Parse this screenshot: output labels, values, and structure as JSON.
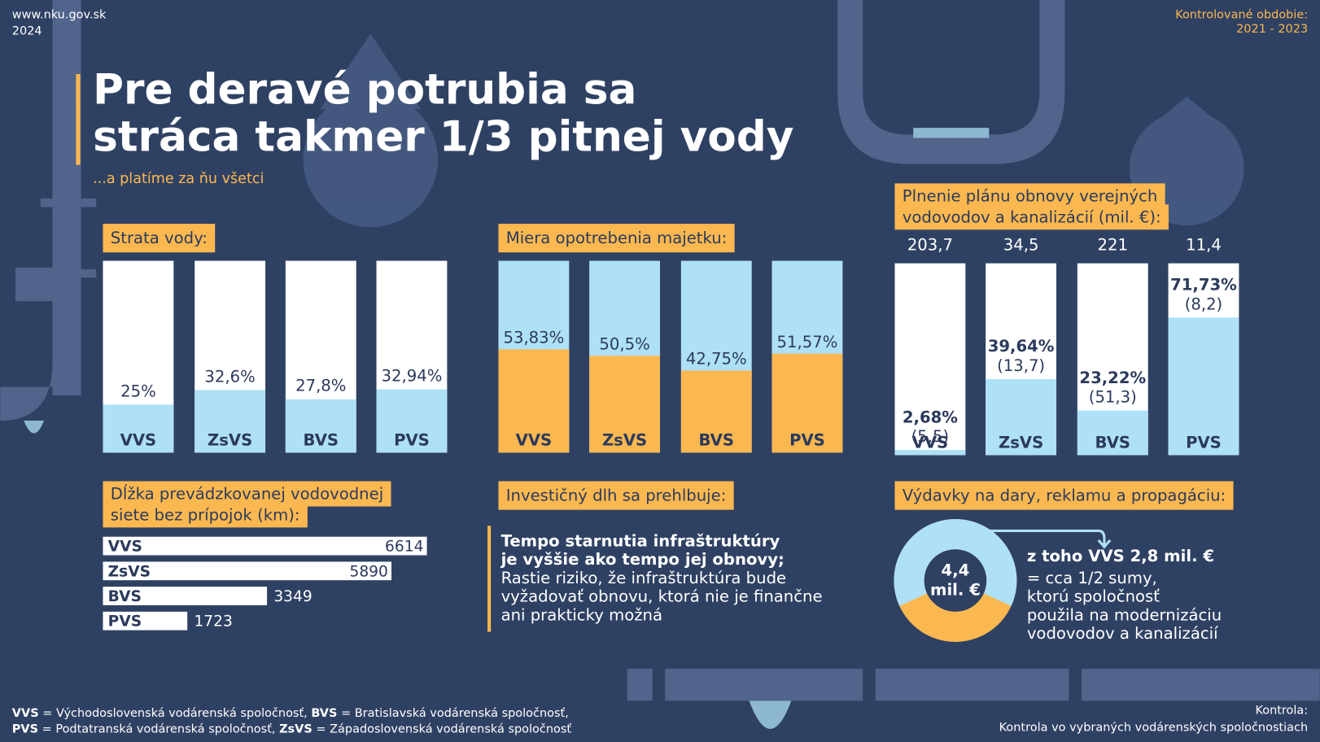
{
  "header": {
    "site": "www.nku.gov.sk",
    "year": "2024",
    "period_label": "Kontrolované obdobie:",
    "period": "2021 - 2023",
    "title_lines": [
      "Pre deravé potrubia sa",
      "stráca takmer 1/3 pitnej vody"
    ],
    "subtitle": "...a platíme za ňu všetci"
  },
  "water_loss": {
    "title": "Strata vody:",
    "categories": [
      "VVS",
      "ZsVS",
      "BVS",
      "PVS"
    ],
    "values": [
      25,
      32.6,
      27.8,
      32.94
    ],
    "value_labels": [
      "25%",
      "32,6%",
      "27,8%",
      "32,94%"
    ],
    "ylim": [
      0,
      100
    ]
  },
  "asset_wear": {
    "title": "Miera opotrebenia majetku:",
    "categories": [
      "VVS",
      "ZsVS",
      "BVS",
      "PVS"
    ],
    "values": [
      53.83,
      50.5,
      42.75,
      51.57
    ],
    "value_labels": [
      "53,83%",
      "50,5%",
      "42,75%",
      "51,57%"
    ],
    "ylim": [
      0,
      100
    ]
  },
  "plan_fulfillment": {
    "title_lines": [
      "Plnenie plánu obnovy verejných",
      "vodovodov a kanalizácií (mil. €):"
    ],
    "categories": [
      "VVS",
      "ZsVS",
      "BVS",
      "PVS"
    ],
    "totals": [
      203.7,
      34.5,
      221,
      11.4
    ],
    "total_labels": [
      "203,7",
      "34,5",
      "221",
      "11,4"
    ],
    "values": [
      2.68,
      39.64,
      23.22,
      71.73
    ],
    "value_labels": [
      "2,68%",
      "39,64%",
      "23,22%",
      "71,73%"
    ],
    "amounts": [
      5.5,
      13.7,
      51.3,
      8.2
    ],
    "amount_labels": [
      "(5,5)",
      "(13,7)",
      "(51,3)",
      "(8,2)"
    ],
    "ylim": [
      0,
      100
    ]
  },
  "network_length": {
    "title_lines": [
      "Dĺžka prevádzkovanej vodovodnej",
      "siete bez prípojok (km):"
    ],
    "categories": [
      "VVS",
      "ZsVS",
      "BVS",
      "PVS"
    ],
    "values": [
      6614,
      5890,
      3349,
      1723
    ]
  },
  "investment_debt": {
    "title": "Investičný dlh sa prehlbuje:",
    "bold_lines": [
      "Tempo starnutia infraštruktúry",
      "je vyššie ako tempo jej obnovy;"
    ],
    "lines": [
      "Rastie riziko, že infraštruktúra bude",
      "vyžadovať obnovu, ktorá nie je finančne",
      "ani prakticky možná"
    ]
  },
  "expenses": {
    "title": "Výdavky na dary, reklamu a propagáciu:",
    "total": 4.4,
    "total_label": "4,4",
    "unit": "mil. €",
    "part": 2.8,
    "bold_line": "z toho VVS 2,8 mil. €",
    "lines": [
      "= cca 1/2 sumy,",
      "ktorú spoločnosť",
      "použila na modernizáciu",
      "vodovodov a kanalizácií"
    ]
  },
  "footer": {
    "legend_lines": [
      [
        {
          "abbr": "VVS",
          "text": " = Východoslovenská vodárenská spoločnosť, "
        },
        {
          "abbr": "BVS",
          "text": " = Bratislavská vodárenská spoločnosť,"
        }
      ],
      [
        {
          "abbr": "PVS",
          "text": " = Podtatranská vodárenská spoločnosť, "
        },
        {
          "abbr": "ZsVS",
          "text": " = Západoslovenská vodárenská spoločnosť"
        }
      ]
    ],
    "control_label": "Kontrola:",
    "control": "Kontrola vo vybraných vodárenských spoločnostiach"
  }
}
